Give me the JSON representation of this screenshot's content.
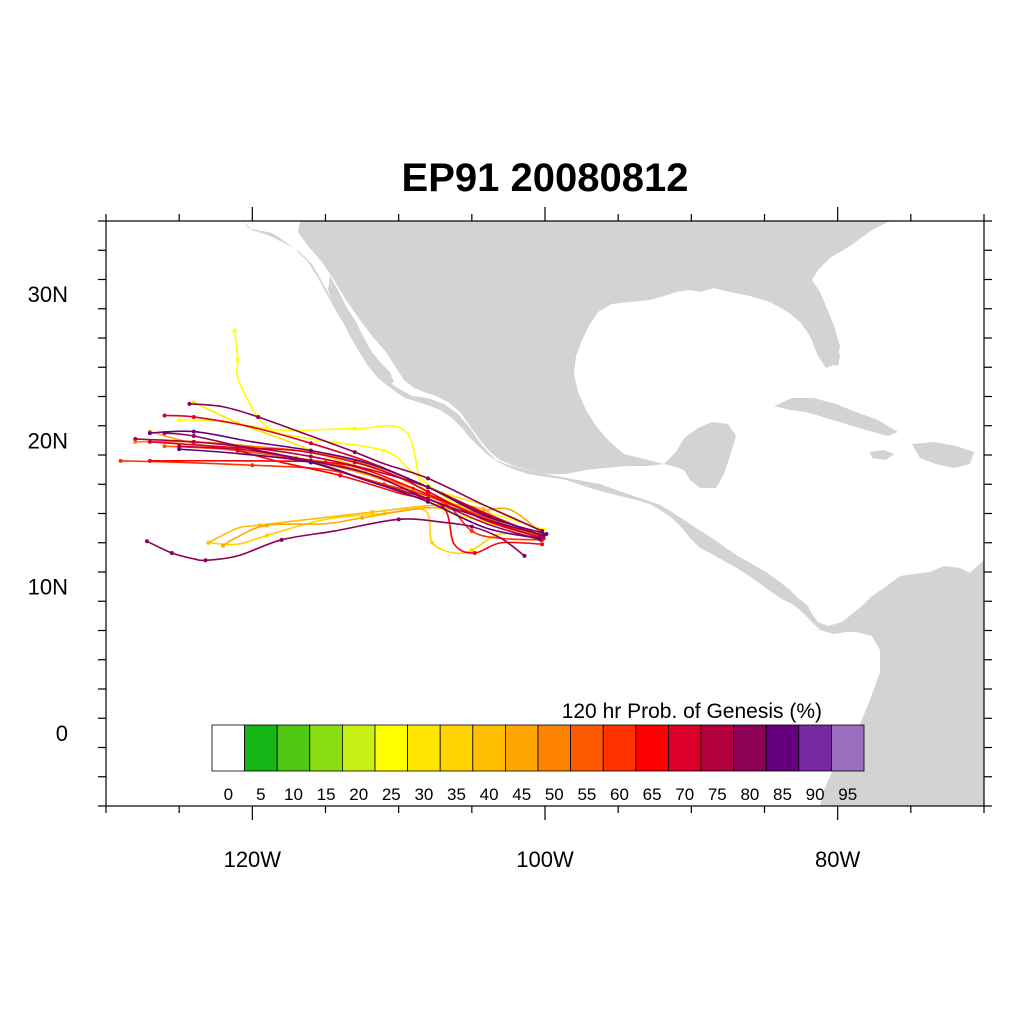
{
  "title": "EP91 20080812",
  "map": {
    "lon_range": [
      -130,
      -70
    ],
    "lat_range": [
      -5,
      35
    ],
    "land_color": "#d3d3d3",
    "ocean_color": "#ffffff",
    "lon_ticks": [
      {
        "value": -120,
        "label": "120W"
      },
      {
        "value": -100,
        "label": "100W"
      },
      {
        "value": -80,
        "label": "80W"
      }
    ],
    "lat_ticks": [
      {
        "value": 30,
        "label": "30N"
      },
      {
        "value": 20,
        "label": "20N"
      },
      {
        "value": 10,
        "label": "10N"
      },
      {
        "value": 0,
        "label": "0"
      }
    ]
  },
  "colorbar": {
    "title": "120 hr Prob. of Genesis (%)",
    "labels": [
      "0",
      "5",
      "10",
      "15",
      "20",
      "25",
      "30",
      "35",
      "40",
      "45",
      "50",
      "55",
      "60",
      "65",
      "70",
      "75",
      "80",
      "85",
      "90",
      "95"
    ],
    "colors": [
      "#ffffff",
      "#14b514",
      "#50c814",
      "#8ade14",
      "#c8f014",
      "#ffff00",
      "#ffe600",
      "#ffd200",
      "#ffbe00",
      "#ffa600",
      "#ff8200",
      "#ff5a00",
      "#ff3200",
      "#ff0000",
      "#dc0028",
      "#b4003c",
      "#8c0055",
      "#64007d",
      "#7828a0",
      "#9b6ebe"
    ]
  },
  "chart_data": {
    "type": "track-map",
    "tracks": [
      {
        "color": "#ffff00",
        "points": [
          [
            -100.1,
            13.9
          ],
          [
            -103,
            14.8
          ],
          [
            -106,
            15.6
          ],
          [
            -109,
            17.8
          ],
          [
            -111,
            19.3
          ],
          [
            -116,
            20.1
          ],
          [
            -119,
            20.9
          ],
          [
            -120.9,
            24.0
          ],
          [
            -121.0,
            25.5
          ],
          [
            -121.2,
            27.5
          ]
        ]
      },
      {
        "color": "#ffff00",
        "points": [
          [
            -100.2,
            13.7
          ],
          [
            -104,
            14.4
          ],
          [
            -108,
            16.0
          ],
          [
            -109.5,
            20.6
          ],
          [
            -113,
            20.8
          ],
          [
            -118,
            20.7
          ],
          [
            -122,
            21.3
          ],
          [
            -125,
            21.4
          ]
        ]
      },
      {
        "color": "#ffe600",
        "points": [
          [
            -100.4,
            13.9
          ],
          [
            -104,
            15.5
          ],
          [
            -107,
            16.4
          ],
          [
            -110,
            17.5
          ],
          [
            -114,
            18.6
          ],
          [
            -118,
            20.1
          ],
          [
            -121,
            21.2
          ],
          [
            -124,
            22.6
          ]
        ]
      },
      {
        "color": "#ffd200",
        "points": [
          [
            -100.2,
            13.3
          ],
          [
            -103,
            13.6
          ],
          [
            -105,
            12.5
          ],
          [
            -106.2,
            12.3
          ],
          [
            -107.7,
            13.0
          ],
          [
            -108.2,
            15.2
          ],
          [
            -111,
            15.0
          ],
          [
            -115,
            14.6
          ],
          [
            -119,
            13.5
          ],
          [
            -121,
            12.9
          ],
          [
            -123,
            13.0
          ]
        ]
      },
      {
        "color": "#ffbe00",
        "points": [
          [
            -100.3,
            13.5
          ],
          [
            -103.2,
            14.4
          ],
          [
            -104.2,
            15.3
          ],
          [
            -107,
            15.6
          ],
          [
            -111.8,
            15.1
          ],
          [
            -117,
            14.5
          ],
          [
            -119.5,
            14.2
          ],
          [
            -121,
            14.0
          ],
          [
            -123,
            13.0
          ]
        ]
      },
      {
        "color": "#ffa600",
        "points": [
          [
            -100.1,
            13.4
          ],
          [
            -103,
            14.2
          ],
          [
            -107,
            15.8
          ],
          [
            -112,
            17.6
          ],
          [
            -117,
            18.8
          ],
          [
            -121,
            19.3
          ],
          [
            -124,
            19.8
          ],
          [
            -127,
            20.6
          ]
        ]
      },
      {
        "color": "#ffa600",
        "points": [
          [
            -100.3,
            13.7
          ],
          [
            -102.5,
            15.3
          ],
          [
            -105,
            15.1
          ],
          [
            -108,
            15.4
          ],
          [
            -112.5,
            14.7
          ],
          [
            -115,
            14.3
          ],
          [
            -119,
            14.2
          ],
          [
            -121.2,
            13.3
          ],
          [
            -122,
            12.8
          ]
        ]
      },
      {
        "color": "#ff8200",
        "points": [
          [
            -100.4,
            13.6
          ],
          [
            -104,
            14.5
          ],
          [
            -108,
            16.5
          ],
          [
            -112,
            18.3
          ],
          [
            -116,
            19.2
          ],
          [
            -120,
            19.6
          ],
          [
            -124,
            19.9
          ],
          [
            -128,
            19.9
          ]
        ]
      },
      {
        "color": "#ff5a00",
        "points": [
          [
            -100.1,
            13.3
          ],
          [
            -104,
            14.7
          ],
          [
            -109,
            16.7
          ],
          [
            -114,
            18.3
          ],
          [
            -118,
            18.9
          ],
          [
            -122,
            19.4
          ],
          [
            -126,
            19.6
          ]
        ]
      },
      {
        "color": "#ff3200",
        "points": [
          [
            -100.2,
            13.2
          ],
          [
            -103,
            13.3
          ],
          [
            -105,
            13.8
          ],
          [
            -107,
            15.8
          ],
          [
            -111,
            17.0
          ],
          [
            -115,
            18.0
          ],
          [
            -120,
            18.3
          ],
          [
            -125,
            18.5
          ],
          [
            -129,
            18.6
          ]
        ]
      },
      {
        "color": "#ff0000",
        "points": [
          [
            -100.2,
            12.9
          ],
          [
            -103,
            13.0
          ],
          [
            -104.8,
            12.3
          ],
          [
            -106.2,
            12.9
          ],
          [
            -107,
            15.5
          ],
          [
            -110,
            16.4
          ],
          [
            -114,
            17.6
          ],
          [
            -118,
            18.5
          ],
          [
            -121,
            19.3
          ]
        ]
      },
      {
        "color": "#ff0000",
        "points": [
          [
            -100.3,
            13.3
          ],
          [
            -104,
            14.6
          ],
          [
            -108,
            16.3
          ],
          [
            -112,
            17.9
          ],
          [
            -115,
            18.5
          ],
          [
            -121,
            18.6
          ],
          [
            -127,
            18.6
          ]
        ]
      },
      {
        "color": "#dc0028",
        "points": [
          [
            -100.1,
            13.4
          ],
          [
            -104,
            15.0
          ],
          [
            -108,
            16.8
          ],
          [
            -112,
            18.5
          ],
          [
            -116,
            19.8
          ],
          [
            -120,
            20.9
          ],
          [
            -124,
            21.6
          ],
          [
            -126,
            21.7
          ]
        ]
      },
      {
        "color": "#dc0028",
        "points": [
          [
            -100.1,
            13.3
          ],
          [
            -104,
            14.5
          ],
          [
            -108,
            16.5
          ],
          [
            -110,
            17.5
          ],
          [
            -113,
            18.5
          ],
          [
            -117,
            19.3
          ],
          [
            -121,
            19.5
          ],
          [
            -127,
            19.9
          ]
        ]
      },
      {
        "color": "#b4003c",
        "points": [
          [
            -100.2,
            13.5
          ],
          [
            -104,
            14.9
          ],
          [
            -108,
            16.8
          ],
          [
            -112,
            18.0
          ],
          [
            -116,
            18.9
          ],
          [
            -120,
            19.5
          ],
          [
            -124,
            19.9
          ],
          [
            -128,
            20.1
          ]
        ]
      },
      {
        "color": "#b4003c",
        "points": [
          [
            -100.3,
            13.2
          ],
          [
            -104,
            14.3
          ],
          [
            -108,
            16.0
          ],
          [
            -112,
            17.2
          ],
          [
            -116,
            18.5
          ],
          [
            -120,
            19.3
          ],
          [
            -125,
            19.6
          ]
        ]
      },
      {
        "color": "#8c0055",
        "points": [
          [
            -101.4,
            12.1
          ],
          [
            -103,
            13.3
          ],
          [
            -105,
            14.1
          ],
          [
            -107,
            14.4
          ],
          [
            -110,
            14.6
          ],
          [
            -114.4,
            13.8
          ],
          [
            -118,
            13.2
          ],
          [
            -121,
            12.1
          ],
          [
            -123.2,
            11.8
          ],
          [
            -124,
            11.9
          ],
          [
            -125.5,
            12.3
          ],
          [
            -127.2,
            13.1
          ]
        ]
      },
      {
        "color": "#8c0055",
        "points": [
          [
            -100.2,
            13.8
          ],
          [
            -104,
            15.5
          ],
          [
            -108,
            17.4
          ],
          [
            -111,
            18.4
          ],
          [
            -113,
            19.2
          ],
          [
            -116,
            20.3
          ],
          [
            -119.6,
            21.6
          ],
          [
            -122,
            22.3
          ],
          [
            -124.3,
            22.5
          ]
        ]
      },
      {
        "color": "#8c0055",
        "points": [
          [
            -100.1,
            13.5
          ],
          [
            -104,
            14.6
          ],
          [
            -108,
            16.0
          ],
          [
            -112,
            17.7
          ],
          [
            -116,
            18.6
          ],
          [
            -120,
            19.4
          ],
          [
            -124,
            20.3
          ],
          [
            -126,
            20.5
          ]
        ]
      },
      {
        "color": "#64007d",
        "points": [
          [
            -99.9,
            13.6
          ],
          [
            -104,
            14.8
          ],
          [
            -108,
            16.8
          ],
          [
            -112,
            18.4
          ],
          [
            -116,
            19.3
          ],
          [
            -120,
            19.9
          ],
          [
            -124,
            20.6
          ],
          [
            -127,
            20.5
          ]
        ]
      },
      {
        "color": "#64007d",
        "points": [
          [
            -100.4,
            13.3
          ],
          [
            -104,
            14.0
          ],
          [
            -108,
            15.8
          ],
          [
            -112,
            17.2
          ],
          [
            -116,
            18.5
          ],
          [
            -121,
            19.1
          ],
          [
            -125,
            19.4
          ]
        ]
      }
    ]
  }
}
